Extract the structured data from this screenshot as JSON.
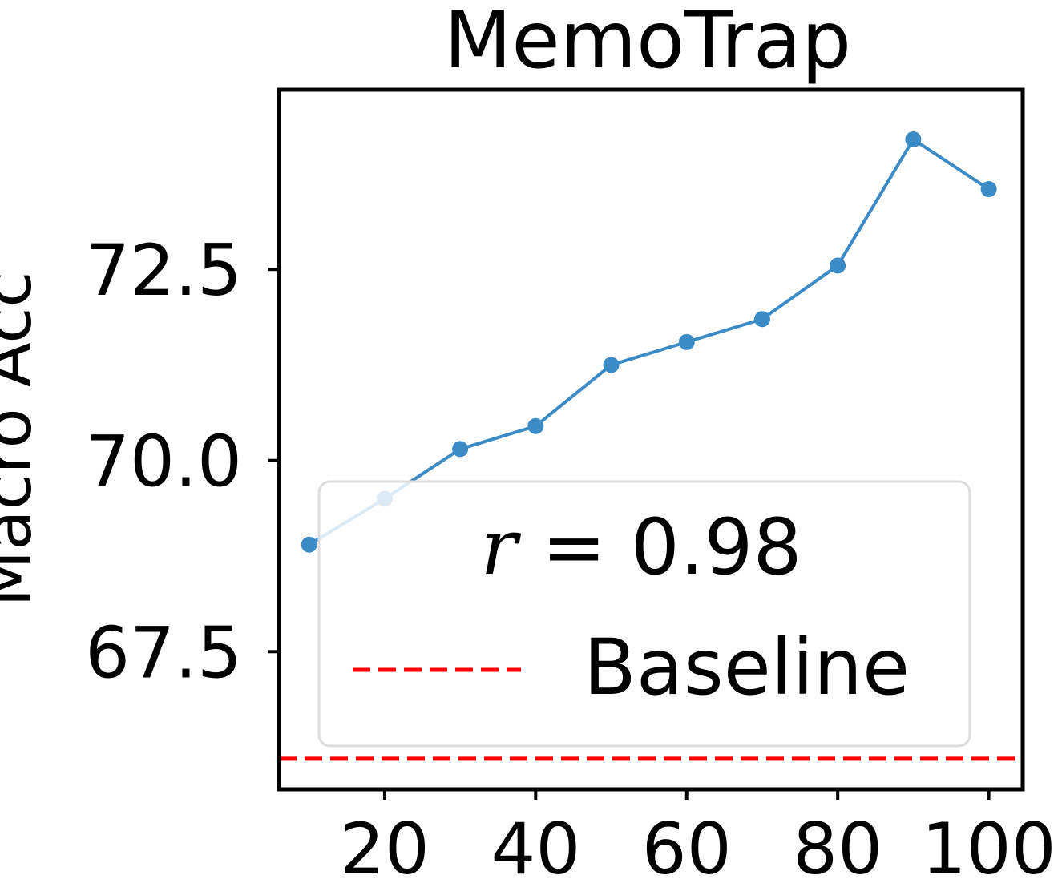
{
  "chart_data": {
    "type": "line",
    "title": "MemoTrap",
    "ylabel": "Macro Acc",
    "xlabel": "",
    "x": [
      10,
      20,
      30,
      40,
      50,
      60,
      70,
      80,
      90,
      100
    ],
    "series": [
      {
        "values": [
          68.9,
          69.5,
          70.15,
          70.45,
          71.25,
          71.55,
          71.85,
          72.55,
          74.2,
          73.55
        ],
        "color": "#3b8bc6"
      }
    ],
    "baseline": {
      "name": "Baseline",
      "value": 66.1,
      "color": "#ff0000"
    },
    "annotation": {
      "r_symbol": "r",
      "r_text": " = 0.98"
    },
    "xticks": [
      20,
      40,
      60,
      80,
      100
    ],
    "yticks": [
      "67.5",
      "70.0",
      "72.5"
    ],
    "xlim": [
      6,
      104.5
    ],
    "ylim": [
      65.7,
      74.85
    ],
    "grid": false,
    "legend_position": "lower-center"
  }
}
